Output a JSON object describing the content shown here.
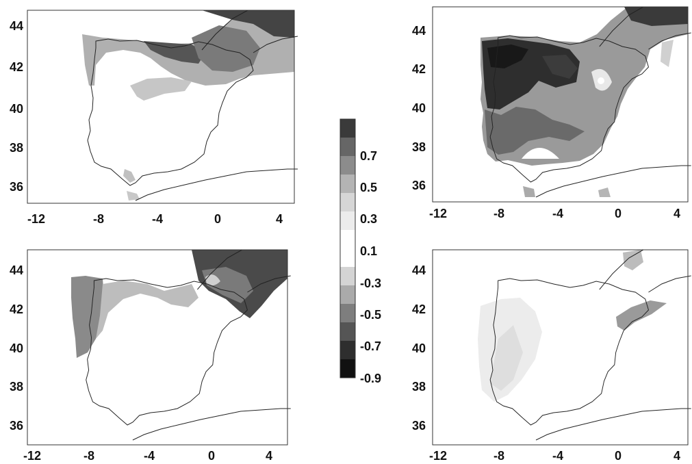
{
  "colorbar": {
    "labels": [
      "0.7",
      "0.5",
      "0.3",
      "0.1",
      "-0.3",
      "-0.5",
      "-0.7",
      "-0.9"
    ],
    "shades": [
      "#3a3a3a",
      "#666666",
      "#8c8c8c",
      "#b4b4b4",
      "#d6d6d6",
      "#ececec",
      "#ffffff",
      "#ffffff",
      "#d4d4d4",
      "#aaaaaa",
      "#7e7e7e",
      "#555555",
      "#2e2e2e",
      "#111111"
    ]
  },
  "maps": [
    {
      "id": "top-left",
      "x_ticks": [
        "-12",
        "-8",
        "-4",
        "0",
        "4"
      ],
      "y_ticks": [
        "44",
        "42",
        "40",
        "38",
        "36"
      ]
    },
    {
      "id": "top-right",
      "x_ticks": [
        "-12",
        "-8",
        "-4",
        "0",
        "4"
      ],
      "y_ticks": [
        "44",
        "42",
        "40",
        "38",
        "36"
      ]
    },
    {
      "id": "bottom-left",
      "x_ticks": [
        "-12",
        "-8",
        "-4",
        "0",
        "4"
      ],
      "y_ticks": [
        "44",
        "42",
        "40",
        "38",
        "36"
      ]
    },
    {
      "id": "bottom-right",
      "x_ticks": [
        "-12",
        "-8",
        "-4",
        "0",
        "4"
      ],
      "y_ticks": [
        "44",
        "42",
        "40",
        "38",
        "36"
      ]
    }
  ]
}
